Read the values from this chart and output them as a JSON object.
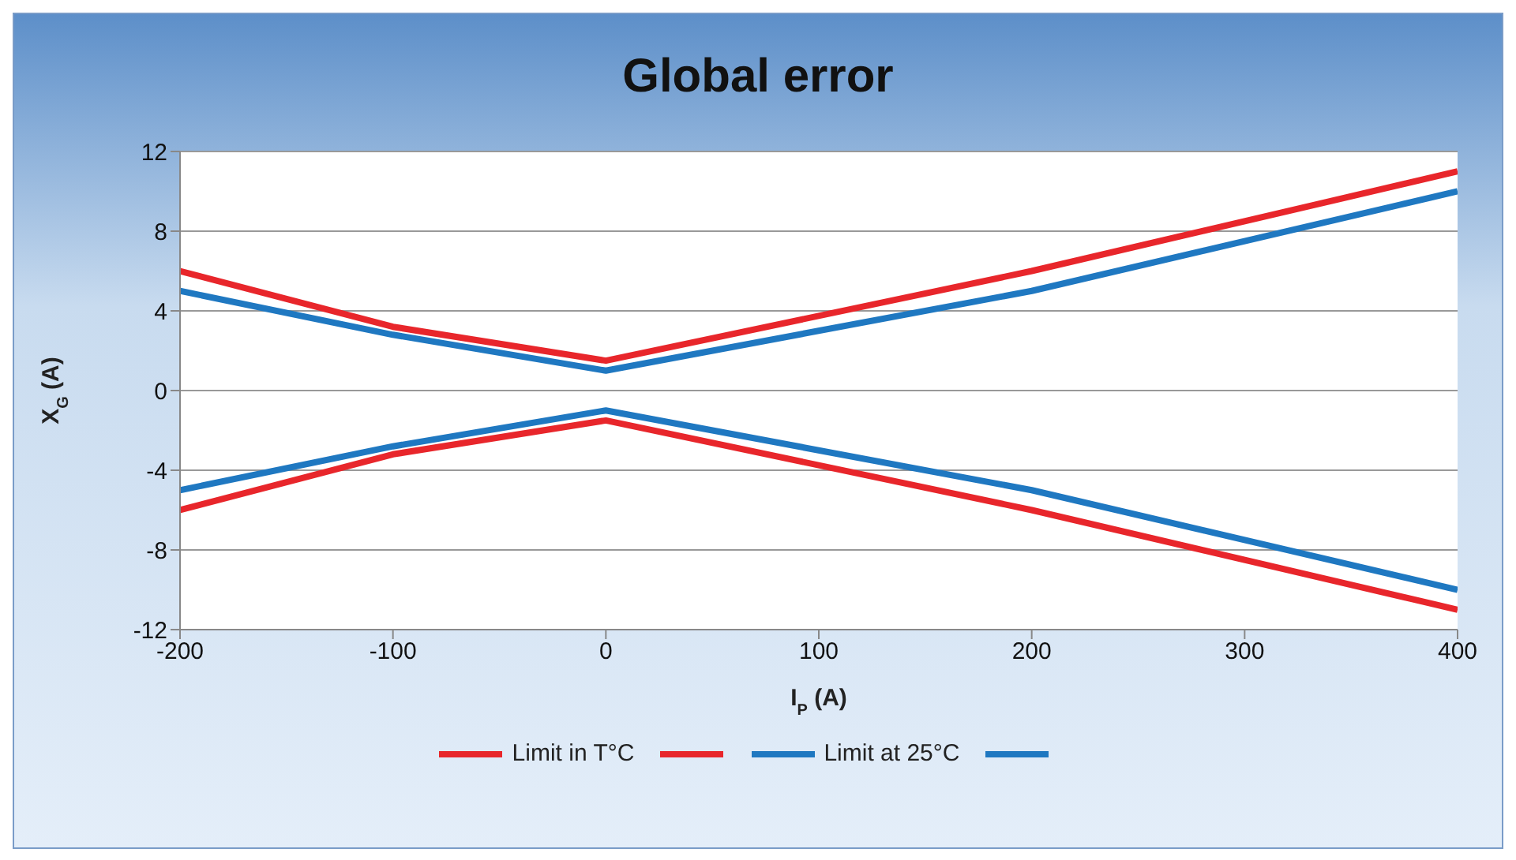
{
  "chart_data": {
    "type": "line",
    "title": "Global error",
    "xlabel": "I$_{P}$ (A)",
    "ylabel": "X$_{G}$ (A)",
    "x": [
      -200,
      -100,
      0,
      200,
      400
    ],
    "series": [
      {
        "name": "Limit in T°C",
        "color": "#e8262b",
        "values": [
          6,
          3.2,
          1.5,
          6,
          11
        ]
      },
      {
        "color": "#e8262b",
        "values": [
          -6,
          -3.2,
          -1.5,
          -6,
          -11
        ]
      },
      {
        "name": "Limit at 25°C",
        "color": "#1f78c1",
        "values": [
          5,
          2.8,
          1,
          5,
          10
        ]
      },
      {
        "color": "#1f78c1",
        "values": [
          -5,
          -2.8,
          -1,
          -5,
          -10
        ]
      }
    ],
    "xlim": [
      -200,
      400
    ],
    "xticks": [
      -200,
      -100,
      0,
      100,
      200,
      300,
      400
    ],
    "ylim": [
      -12,
      12
    ],
    "yticks": [
      -12,
      -8,
      -4,
      0,
      4,
      8,
      12
    ],
    "grid": "y",
    "legend": "bottom",
    "marker": "none",
    "line_style": "solid"
  }
}
